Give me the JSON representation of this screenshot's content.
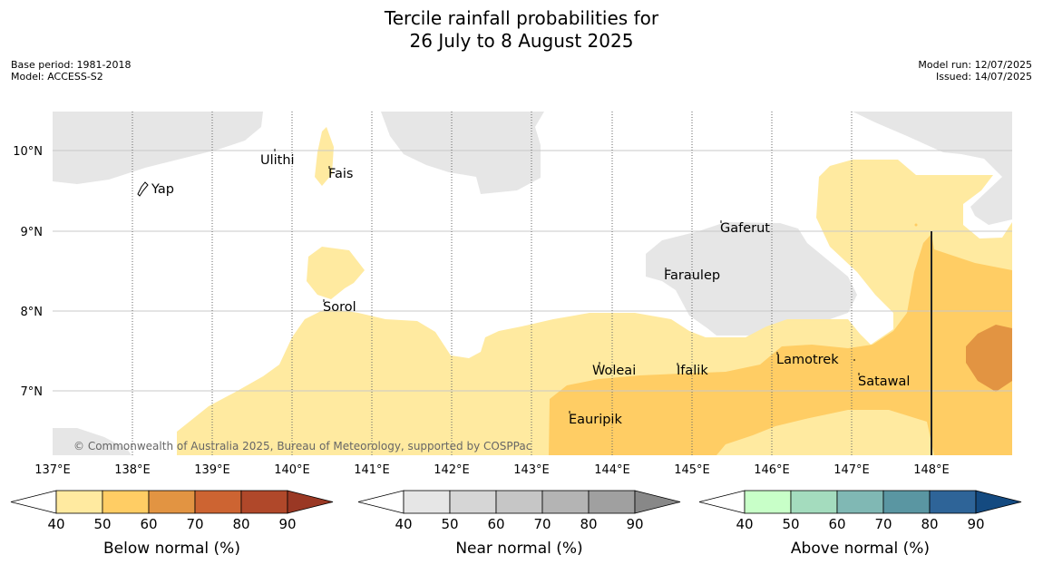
{
  "title": {
    "line1": "Tercile rainfall probabilities for",
    "line2": "26 July to 8 August 2025"
  },
  "meta": {
    "base_period": "Base period: 1981-2018",
    "model": "Model: ACCESS-S2",
    "model_run": "Model run: 12/07/2025",
    "issued": "Issued: 14/07/2025"
  },
  "map": {
    "longitude_labels": [
      "137°E",
      "138°E",
      "139°E",
      "140°E",
      "141°E",
      "142°E",
      "143°E",
      "144°E",
      "145°E",
      "146°E",
      "147°E",
      "148°E"
    ],
    "latitude_labels": [
      "10°N",
      "9°N",
      "8°N",
      "7°N"
    ],
    "places": [
      "Yap",
      "Ulithi",
      "Fais",
      "Gaferut",
      "Faraulep",
      "Sorol",
      "Woleai",
      "Ifalik",
      "Lamotrek",
      "Satawal",
      "Eauripik"
    ],
    "copyright": "© Commonwealth of Australia 2025, Bureau of Meteorology, supported by COSPPac"
  },
  "colors": {
    "land_grey": "#e6e6e6",
    "below_40_50": "#ffeaa0",
    "below_50_60": "#ffcd64",
    "below_60_70": "#e29442"
  },
  "legends": [
    {
      "label": "Below normal (%)",
      "ticks": [
        "40",
        "50",
        "60",
        "70",
        "80",
        "90"
      ],
      "colors": [
        "#ffeaa0",
        "#ffcd64",
        "#e29442",
        "#cd6432",
        "#b0482a",
        "#9a3824"
      ]
    },
    {
      "label": "Near normal (%)",
      "ticks": [
        "40",
        "50",
        "60",
        "70",
        "80",
        "90"
      ],
      "colors": [
        "#e6e6e6",
        "#d6d6d6",
        "#c6c6c6",
        "#b4b4b4",
        "#a0a0a0",
        "#888888"
      ]
    },
    {
      "label": "Above normal (%)",
      "ticks": [
        "40",
        "50",
        "60",
        "70",
        "80",
        "90"
      ],
      "colors": [
        "#c8ffc8",
        "#a4dcbe",
        "#80b8b4",
        "#5a96a2",
        "#2e6498",
        "#144a80"
      ]
    }
  ]
}
